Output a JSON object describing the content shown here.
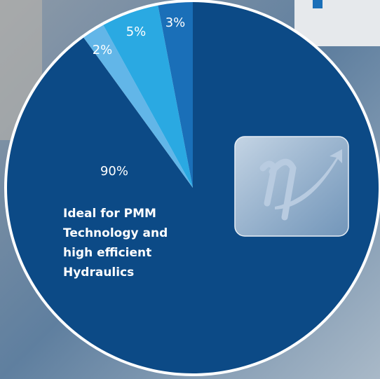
{
  "chart_data": {
    "type": "pie",
    "categories": [
      null,
      null,
      null,
      null
    ],
    "values": [
      90,
      2,
      5,
      3
    ],
    "value_labels": [
      "90%",
      "2%",
      "5%",
      "3%"
    ],
    "colors": [
      "#0c4a86",
      "#62b6e8",
      "#2aa9e2",
      "#1a6fb8"
    ],
    "annotation": [
      "Ideal for PMM",
      "Technology and",
      "high efficient",
      "Hydraulics"
    ]
  }
}
